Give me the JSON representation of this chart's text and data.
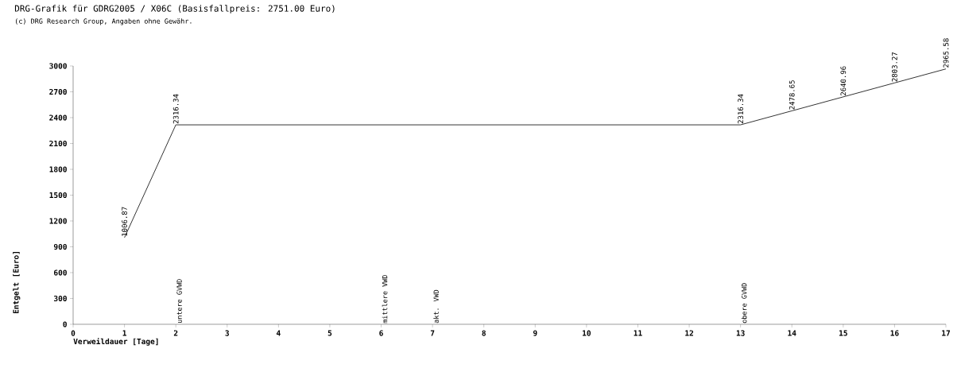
{
  "chart_data": {
    "type": "line",
    "title": "DRG-Grafik für GDRG2005 / X06C (Basisfallpreis: 2751.00 Euro)",
    "subtitle": "(c) DRG Research Group, Angaben ohne Gewähr.",
    "xlabel": "Verweildauer [Tage]",
    "ylabel": "Entgelt [Euro]",
    "x": [
      1,
      2,
      13,
      14,
      15,
      16,
      17
    ],
    "values": [
      1006.87,
      2316.34,
      2316.34,
      2478.65,
      2640.96,
      2803.27,
      2965.58
    ],
    "color": "#000000",
    "data_labels": true,
    "marker": "none",
    "line_style": "solid",
    "grid": false,
    "xlim": [
      0,
      17
    ],
    "xticks": [
      0,
      1,
      2,
      3,
      4,
      5,
      6,
      7,
      8,
      9,
      10,
      11,
      12,
      13,
      14,
      15,
      16,
      17
    ],
    "ylim": [
      0,
      3000
    ],
    "yticks": [
      0,
      300,
      600,
      900,
      1200,
      1500,
      1800,
      2100,
      2400,
      2700,
      3000
    ],
    "ref_lines": [
      {
        "axis": "x",
        "value": 2,
        "label": "untere GVWD",
        "color": "#ffffff"
      },
      {
        "axis": "x",
        "value": 6,
        "label": "mittlere VWD",
        "color": "#ffffff"
      },
      {
        "axis": "x",
        "value": 7,
        "label": "akt. VWD",
        "color": "#ffffff"
      },
      {
        "axis": "x",
        "value": 13,
        "label": "obere GVWD",
        "color": "#ffffff"
      }
    ]
  }
}
